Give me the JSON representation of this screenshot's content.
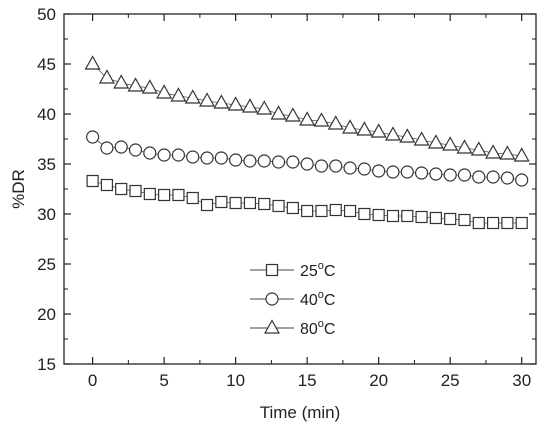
{
  "chart_data": {
    "type": "scatter",
    "xlabel": "Time (min)",
    "ylabel": "%DR",
    "xlim": [
      -2,
      31
    ],
    "ylim": [
      15,
      50
    ],
    "xticks": [
      0,
      5,
      10,
      15,
      20,
      25,
      30
    ],
    "yticks": [
      15,
      20,
      25,
      30,
      35,
      40,
      45,
      50
    ],
    "grid": false,
    "legend_position": "bottom-center",
    "series": [
      {
        "name": "25",
        "name_sup": "o",
        "name_suffix": "C",
        "marker": "square",
        "x": [
          0,
          1,
          2,
          3,
          4,
          5,
          6,
          7,
          8,
          9,
          10,
          11,
          12,
          13,
          14,
          15,
          16,
          17,
          18,
          19,
          20,
          21,
          22,
          23,
          24,
          25,
          26,
          27,
          28,
          29,
          30
        ],
        "values": [
          33.3,
          32.9,
          32.5,
          32.3,
          32.0,
          31.9,
          31.9,
          31.6,
          30.9,
          31.2,
          31.1,
          31.1,
          31.0,
          30.8,
          30.6,
          30.3,
          30.3,
          30.4,
          30.3,
          30.0,
          29.9,
          29.8,
          29.8,
          29.7,
          29.6,
          29.5,
          29.4,
          29.1,
          29.1,
          29.1,
          29.1
        ]
      },
      {
        "name": "40",
        "name_sup": "o",
        "name_suffix": "C",
        "marker": "circle",
        "x": [
          0,
          1,
          2,
          3,
          4,
          5,
          6,
          7,
          8,
          9,
          10,
          11,
          12,
          13,
          14,
          15,
          16,
          17,
          18,
          19,
          20,
          21,
          22,
          23,
          24,
          25,
          26,
          27,
          28,
          29,
          30
        ],
        "values": [
          37.7,
          36.6,
          36.7,
          36.4,
          36.1,
          35.9,
          35.9,
          35.7,
          35.6,
          35.6,
          35.4,
          35.3,
          35.3,
          35.2,
          35.2,
          35.0,
          34.8,
          34.8,
          34.6,
          34.5,
          34.3,
          34.2,
          34.2,
          34.1,
          34.0,
          33.9,
          33.9,
          33.7,
          33.7,
          33.6,
          33.4
        ]
      },
      {
        "name": "80",
        "name_sup": "o",
        "name_suffix": "C",
        "marker": "triangle",
        "x": [
          0,
          1,
          2,
          3,
          4,
          5,
          6,
          7,
          8,
          9,
          10,
          11,
          12,
          13,
          14,
          15,
          16,
          17,
          18,
          19,
          20,
          21,
          22,
          23,
          24,
          25,
          26,
          27,
          28,
          29,
          30
        ],
        "values": [
          45.0,
          43.6,
          43.1,
          42.8,
          42.6,
          42.1,
          41.8,
          41.6,
          41.3,
          41.1,
          40.9,
          40.7,
          40.5,
          40.0,
          39.8,
          39.4,
          39.3,
          39.0,
          38.6,
          38.4,
          38.2,
          37.9,
          37.7,
          37.4,
          37.1,
          36.9,
          36.6,
          36.4,
          36.1,
          36.0,
          35.8
        ]
      }
    ]
  }
}
